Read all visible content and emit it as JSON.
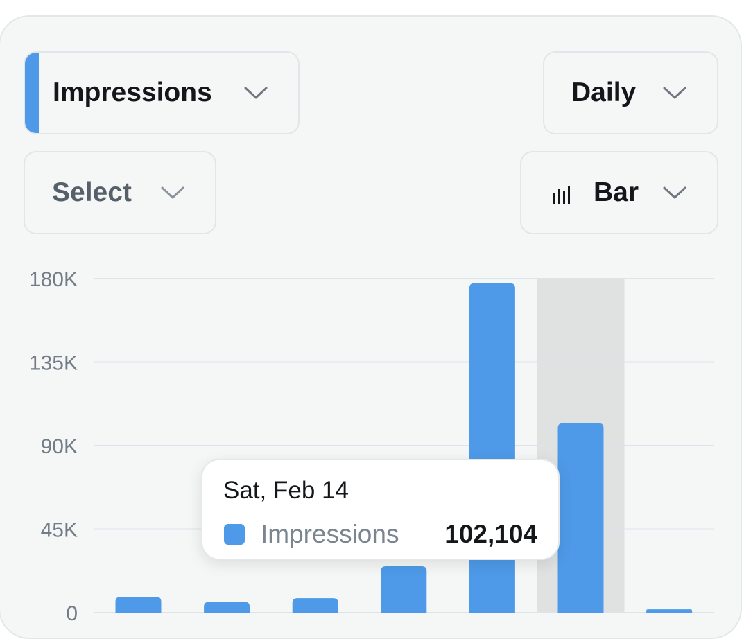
{
  "controls": {
    "metric_label": "Impressions",
    "period_label": "Daily",
    "select_label": "Select",
    "chart_type_label": "Bar"
  },
  "tooltip": {
    "date": "Sat, Feb 14",
    "series": "Impressions",
    "value": "102,104"
  },
  "colors": {
    "accent": "#4e9ae8",
    "bar": "#4e9ae8",
    "highlight": "#e0e1e1",
    "grid": "#dde3ea"
  },
  "icons": {
    "dropdown": "chevron-down-icon",
    "chart_type": "bar-chart-icon"
  },
  "chart_data": {
    "type": "bar",
    "series": [
      {
        "name": "Impressions",
        "values": [
          8500,
          5800,
          7800,
          25000,
          177500,
          102104,
          1800
        ]
      }
    ],
    "highlighted_index": 5,
    "y_ticks": [
      0,
      45000,
      90000,
      135000,
      180000
    ],
    "y_tick_labels": [
      "0",
      "45K",
      "90K",
      "135K",
      "180K"
    ],
    "ylim": [
      0,
      180000
    ],
    "grid": true,
    "legend": "none"
  }
}
